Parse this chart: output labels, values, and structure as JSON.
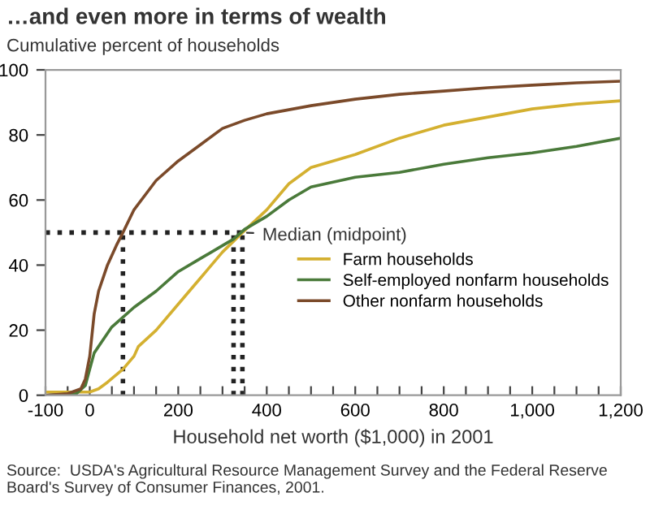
{
  "chart_data": {
    "type": "line",
    "title": "…and even more in terms of wealth",
    "ylabel": "Cumulative percent of households",
    "xlabel": "Household net worth ($1,000) in 2001",
    "series": [
      {
        "name": "Farm households",
        "color": "#d4b030",
        "x": [
          -100,
          -20,
          0,
          20,
          40,
          75,
          100,
          110,
          150,
          200,
          250,
          300,
          345,
          400,
          450,
          500,
          600,
          700,
          800,
          900,
          1000,
          1100,
          1200
        ],
        "values": [
          1,
          1,
          1,
          2,
          4,
          8,
          12,
          15,
          20,
          28,
          36,
          44,
          50,
          57,
          65,
          70,
          74,
          79,
          83,
          85.5,
          88,
          89.5,
          90.5
        ]
      },
      {
        "name": "Self-employed nonfarm households",
        "color": "#4a7a3a",
        "x": [
          -100,
          -30,
          -10,
          0,
          10,
          30,
          50,
          75,
          100,
          150,
          200,
          250,
          300,
          325,
          350,
          400,
          450,
          500,
          600,
          700,
          800,
          900,
          1000,
          1100,
          1200
        ],
        "values": [
          0,
          0.5,
          3,
          8,
          13,
          17,
          21,
          24,
          27,
          32,
          38,
          42,
          46,
          48,
          51,
          55,
          60,
          64,
          67,
          68.5,
          71,
          73,
          74.5,
          76.5,
          79
        ]
      },
      {
        "name": "Other nonfarm households",
        "color": "#7b4a2a",
        "x": [
          -100,
          -50,
          -20,
          -10,
          0,
          10,
          20,
          40,
          60,
          75,
          100,
          150,
          200,
          250,
          300,
          350,
          400,
          500,
          600,
          700,
          800,
          900,
          1000,
          1100,
          1200
        ],
        "values": [
          0,
          0.5,
          2,
          5,
          12,
          25,
          32,
          40,
          46,
          50,
          57,
          66,
          72,
          77,
          82,
          84.5,
          86.5,
          89,
          91,
          92.5,
          93.5,
          94.5,
          95.3,
          96,
          96.5
        ]
      }
    ],
    "xlim": [
      -100,
      1200
    ],
    "xticks": [
      -100,
      {
        "value": -50,
        "label": null
      },
      0,
      {
        "value": 50,
        "label": null
      },
      {
        "value": 100,
        "label": null
      },
      {
        "value": 150,
        "label": null
      },
      200,
      {
        "value": 250,
        "label": null
      },
      {
        "value": 300,
        "label": null
      },
      {
        "value": 350,
        "label": null
      },
      400,
      {
        "value": 450,
        "label": null
      },
      {
        "value": 500,
        "label": null
      },
      {
        "value": 550,
        "label": null
      },
      600,
      {
        "value": 650,
        "label": null
      },
      {
        "value": 700,
        "label": null
      },
      {
        "value": 750,
        "label": null
      },
      800,
      {
        "value": 850,
        "label": null
      },
      {
        "value": 900,
        "label": null
      },
      {
        "value": 950,
        "label": null
      },
      {
        "value": 1000,
        "label": "1,000"
      },
      {
        "value": 1050,
        "label": null
      },
      {
        "value": 1100,
        "label": null
      },
      {
        "value": 1150,
        "label": null
      },
      {
        "value": 1200,
        "label": "1,200"
      }
    ],
    "ylim": [
      0,
      100
    ],
    "yticks": [
      0,
      20,
      40,
      60,
      80,
      100
    ],
    "ref_lines": [
      {
        "axis": "y",
        "value": 50,
        "line_style": "dotted",
        "color": "#222222"
      },
      {
        "axis": "x",
        "value": 75,
        "line_style": "dotted",
        "color": "#222222"
      },
      {
        "axis": "x",
        "value": 325,
        "line_style": "dotted",
        "color": "#222222"
      },
      {
        "axis": "x",
        "value": 345,
        "line_style": "dotted",
        "color": "#222222"
      }
    ],
    "annotations": [
      {
        "text": "Median (midpoint)",
        "x": 345,
        "y": 50
      },
      "Source:  USDA's Agricultural Resource Management Survey and the Federal Reserve Board's Survey of Consumer Finances, 2001."
    ],
    "legend": "right",
    "grid": false,
    "marker": "none",
    "line_style": "solid"
  }
}
